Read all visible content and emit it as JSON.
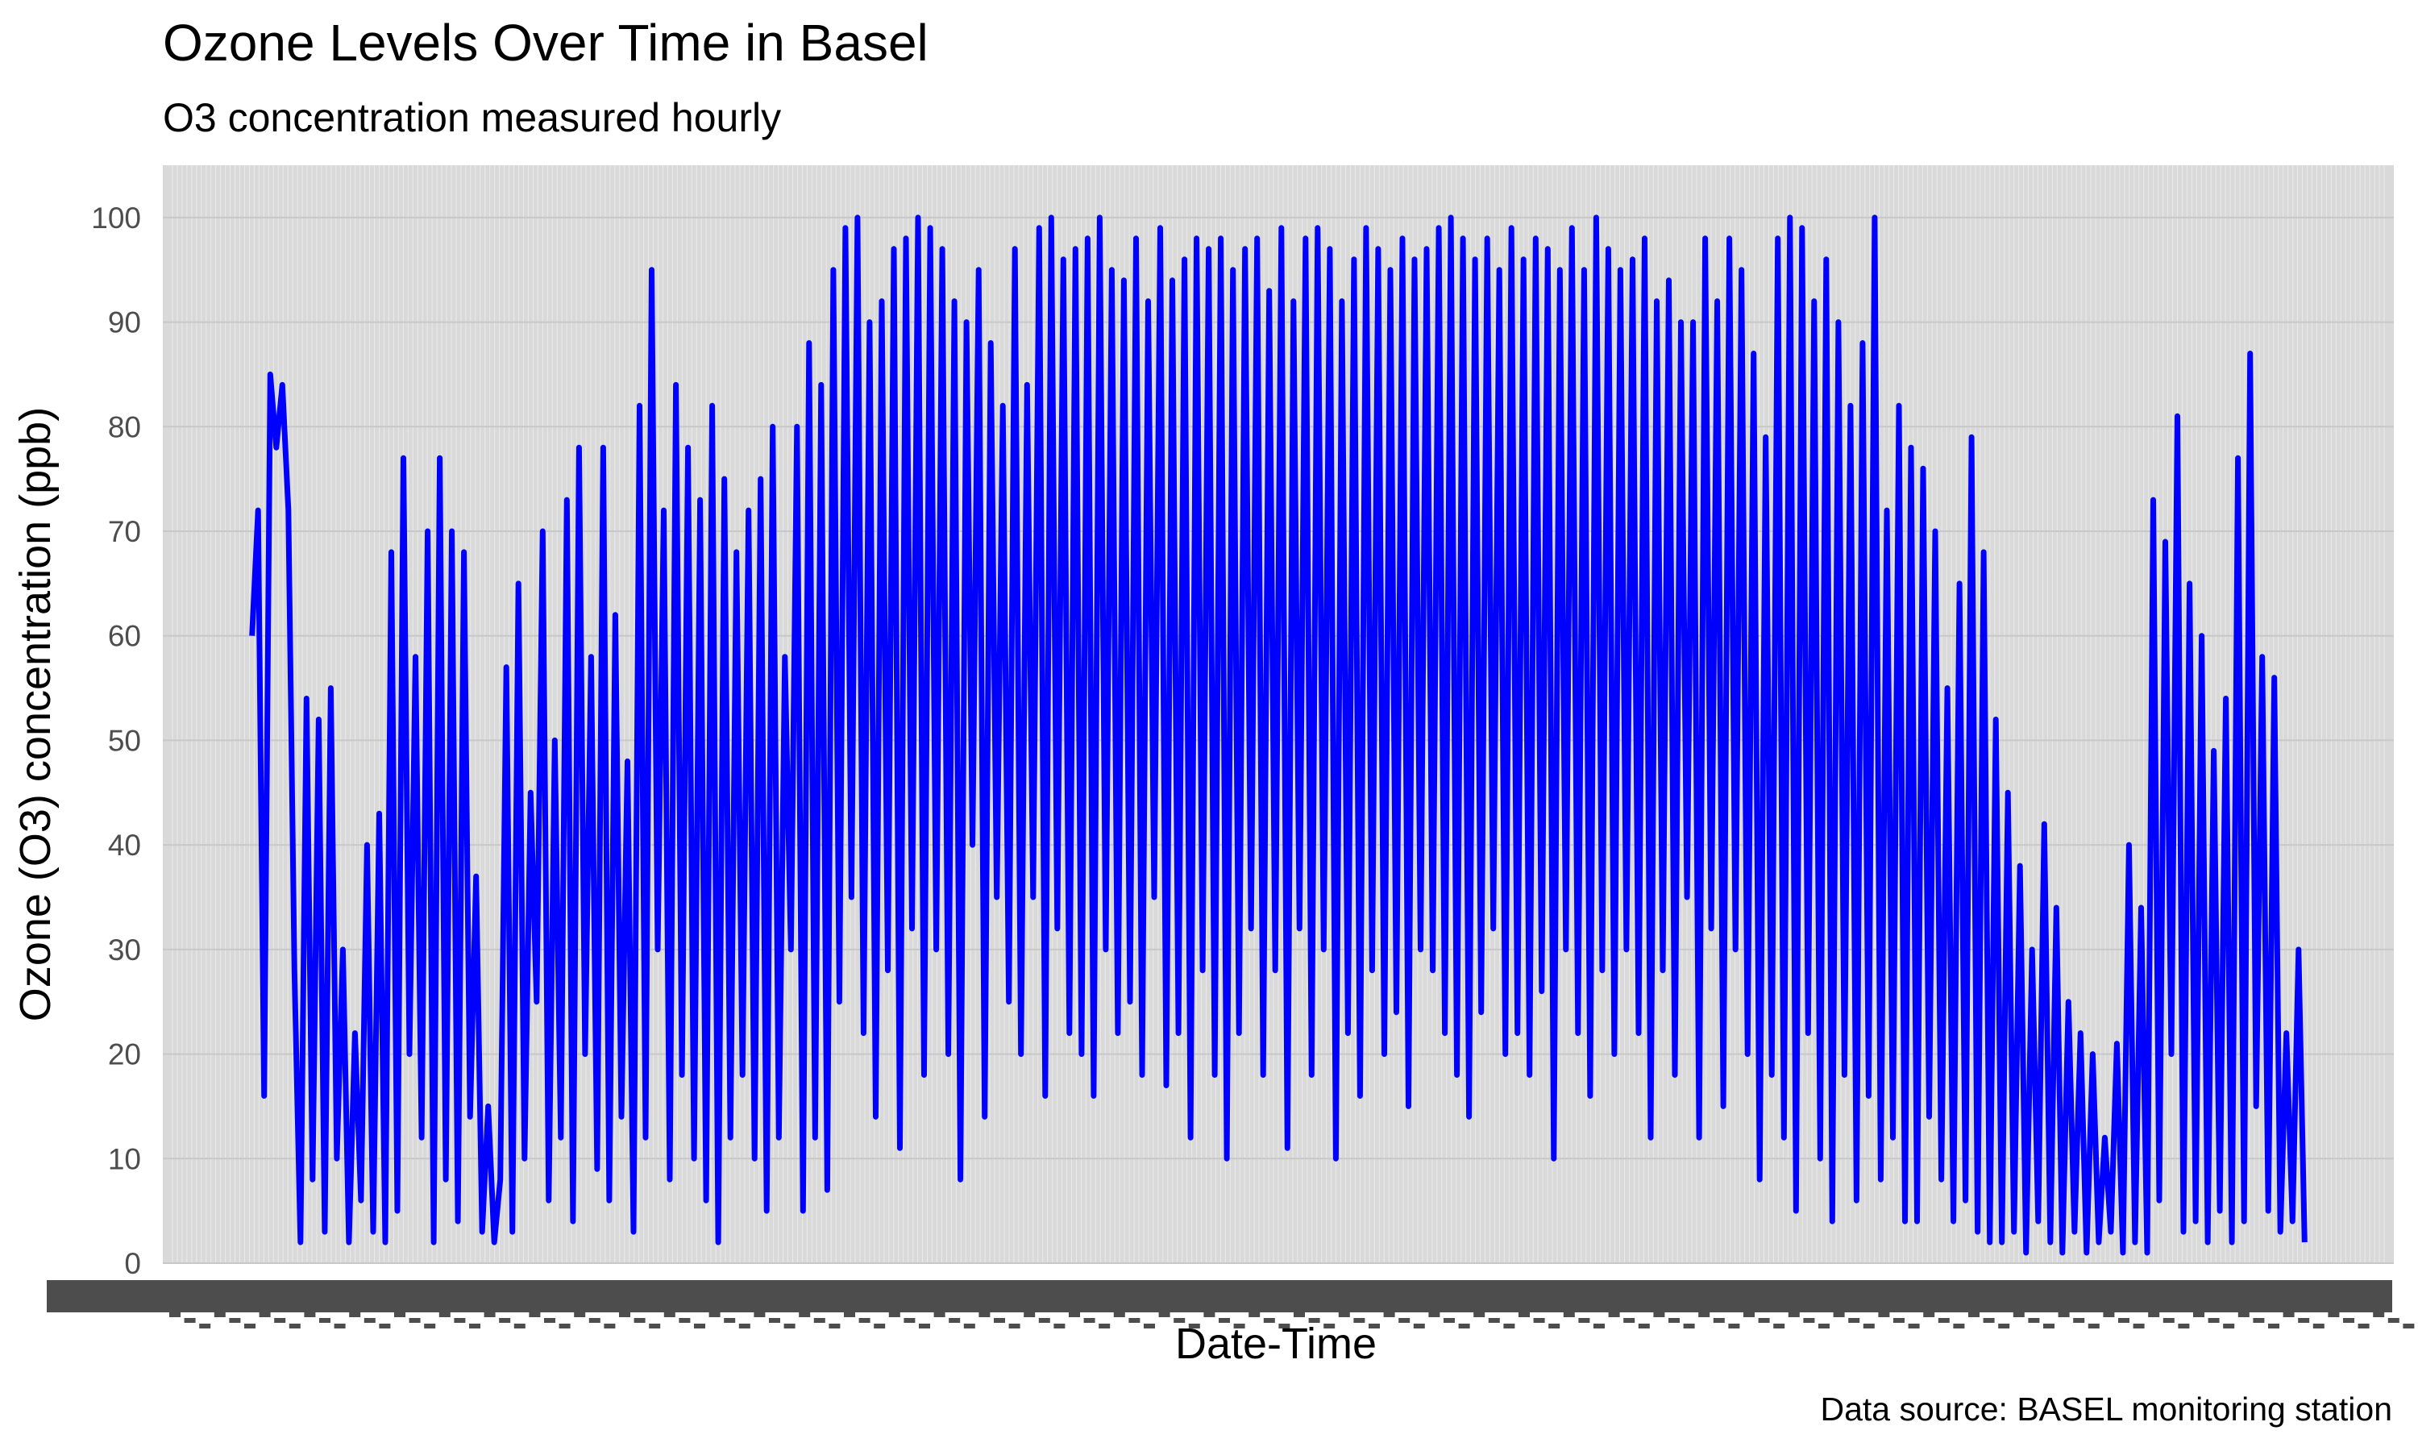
{
  "chart_data": {
    "type": "line",
    "title": "Ozone Levels Over Time in Basel",
    "subtitle": "O3 concentration measured hourly",
    "xlabel": "Date-Time",
    "ylabel": "Ozone (O3) concentration (ppb)",
    "caption": "Data source: BASEL monitoring station",
    "ylim": [
      0,
      105
    ],
    "y_ticks": [
      0,
      10,
      20,
      30,
      40,
      50,
      60,
      70,
      80,
      90,
      100
    ],
    "x_tick_labels_legible": false,
    "grid": true,
    "legend": "none",
    "series": [
      {
        "name": "O3",
        "color": "#0000ff",
        "x_range": [
          0.04,
          0.96
        ],
        "values": [
          60,
          72,
          16,
          85,
          78,
          84,
          72,
          28,
          2,
          54,
          8,
          52,
          3,
          55,
          10,
          30,
          2,
          22,
          6,
          40,
          3,
          43,
          2,
          68,
          5,
          77,
          20,
          58,
          12,
          70,
          2,
          77,
          8,
          70,
          4,
          68,
          14,
          37,
          3,
          15,
          2,
          8,
          57,
          3,
          65,
          10,
          45,
          25,
          70,
          6,
          50,
          12,
          73,
          4,
          78,
          20,
          58,
          9,
          78,
          6,
          62,
          14,
          48,
          3,
          82,
          12,
          95,
          30,
          72,
          8,
          84,
          18,
          78,
          10,
          73,
          6,
          82,
          2,
          75,
          12,
          68,
          18,
          72,
          10,
          75,
          5,
          80,
          12,
          58,
          30,
          80,
          5,
          88,
          12,
          84,
          7,
          95,
          25,
          99,
          35,
          100,
          22,
          90,
          14,
          92,
          28,
          97,
          11,
          98,
          32,
          100,
          18,
          99,
          30,
          97,
          20,
          92,
          8,
          90,
          40,
          95,
          14,
          88,
          35,
          82,
          25,
          97,
          20,
          84,
          35,
          99,
          16,
          100,
          32,
          96,
          22,
          97,
          20,
          98,
          16,
          100,
          30,
          95,
          22,
          94,
          25,
          98,
          18,
          92,
          35,
          99,
          17,
          94,
          22,
          96,
          12,
          98,
          28,
          97,
          18,
          98,
          10,
          95,
          22,
          97,
          32,
          98,
          18,
          93,
          28,
          99,
          11,
          92,
          32,
          98,
          18,
          99,
          30,
          97,
          10,
          92,
          22,
          96,
          16,
          99,
          28,
          97,
          20,
          95,
          24,
          98,
          15,
          96,
          30,
          97,
          28,
          99,
          22,
          100,
          18,
          98,
          14,
          96,
          24,
          98,
          32,
          95,
          20,
          99,
          22,
          96,
          18,
          98,
          26,
          97,
          10,
          95,
          30,
          99,
          22,
          95,
          16,
          100,
          28,
          97,
          20,
          95,
          30,
          96,
          22,
          98,
          12,
          92,
          28,
          94,
          18,
          90,
          35,
          90,
          12,
          98,
          32,
          92,
          15,
          98,
          30,
          95,
          20,
          87,
          8,
          79,
          18,
          98,
          12,
          100,
          5,
          99,
          22,
          92,
          10,
          96,
          4,
          90,
          18,
          82,
          6,
          88,
          16,
          100,
          8,
          72,
          12,
          82,
          4,
          78,
          4,
          76,
          14,
          70,
          8,
          55,
          4,
          65,
          6,
          79,
          3,
          68,
          2,
          52,
          2,
          45,
          3,
          38,
          1,
          30,
          4,
          42,
          2,
          34,
          1,
          25,
          3,
          22,
          1,
          20,
          2,
          12,
          3,
          21,
          1,
          40,
          2,
          34,
          1,
          73,
          6,
          69,
          20,
          81,
          3,
          65,
          4,
          60,
          2,
          49,
          5,
          54,
          2,
          77,
          4,
          87,
          15,
          58,
          5,
          56,
          3,
          22,
          4,
          30,
          2
        ]
      }
    ]
  }
}
